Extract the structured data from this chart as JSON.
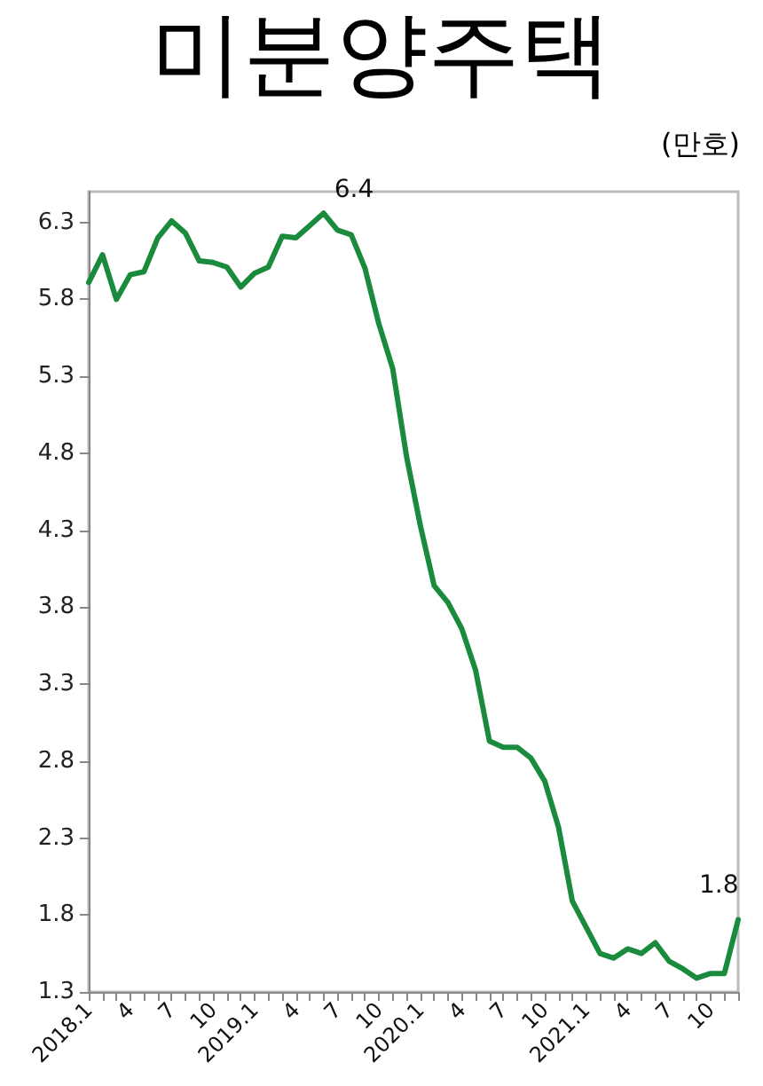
{
  "chart_data": {
    "type": "line",
    "title": "미분양주택",
    "ylabel": "(만호)",
    "categories": [
      "2018.1",
      null,
      null,
      "4",
      null,
      null,
      "7",
      null,
      null,
      "10",
      null,
      null,
      "2019.1",
      null,
      null,
      "4",
      null,
      null,
      "7",
      null,
      null,
      "10",
      null,
      null,
      "2020.1",
      null,
      null,
      "4",
      null,
      null,
      "7",
      null,
      null,
      "10",
      null,
      null,
      "2021.1",
      null,
      null,
      "4",
      null,
      null,
      "7",
      null,
      null,
      "10",
      null,
      null
    ],
    "series": [
      {
        "color": "#1a8a3c",
        "values": [
          5.91,
          6.09,
          5.8,
          5.96,
          5.98,
          6.2,
          6.31,
          6.23,
          6.05,
          6.04,
          6.01,
          5.88,
          5.97,
          6.01,
          6.21,
          6.2,
          6.28,
          6.36,
          6.25,
          6.22,
          6.0,
          5.64,
          5.35,
          4.78,
          4.33,
          3.94,
          3.83,
          3.66,
          3.39,
          2.93,
          2.89,
          2.89,
          2.82,
          2.67,
          2.37,
          1.89,
          1.72,
          1.55,
          1.52,
          1.58,
          1.55,
          1.62,
          1.5,
          1.45,
          1.39,
          1.42,
          1.42,
          1.77
        ],
        "value_labels": [
          null,
          null,
          null,
          null,
          null,
          null,
          null,
          null,
          null,
          null,
          null,
          null,
          null,
          null,
          null,
          null,
          null,
          "6.4",
          null,
          null,
          null,
          null,
          null,
          null,
          null,
          null,
          null,
          null,
          null,
          null,
          null,
          null,
          null,
          null,
          null,
          null,
          null,
          null,
          null,
          null,
          null,
          null,
          null,
          null,
          null,
          null,
          null,
          "1.8"
        ]
      }
    ],
    "ylim": [
      1.3,
      6.5
    ],
    "yticks": [
      1.3,
      1.8,
      2.3,
      2.8,
      3.3,
      3.8,
      4.3,
      4.8,
      5.3,
      5.8,
      6.3
    ],
    "grid": false,
    "marker": "none",
    "line_style": "solid"
  }
}
